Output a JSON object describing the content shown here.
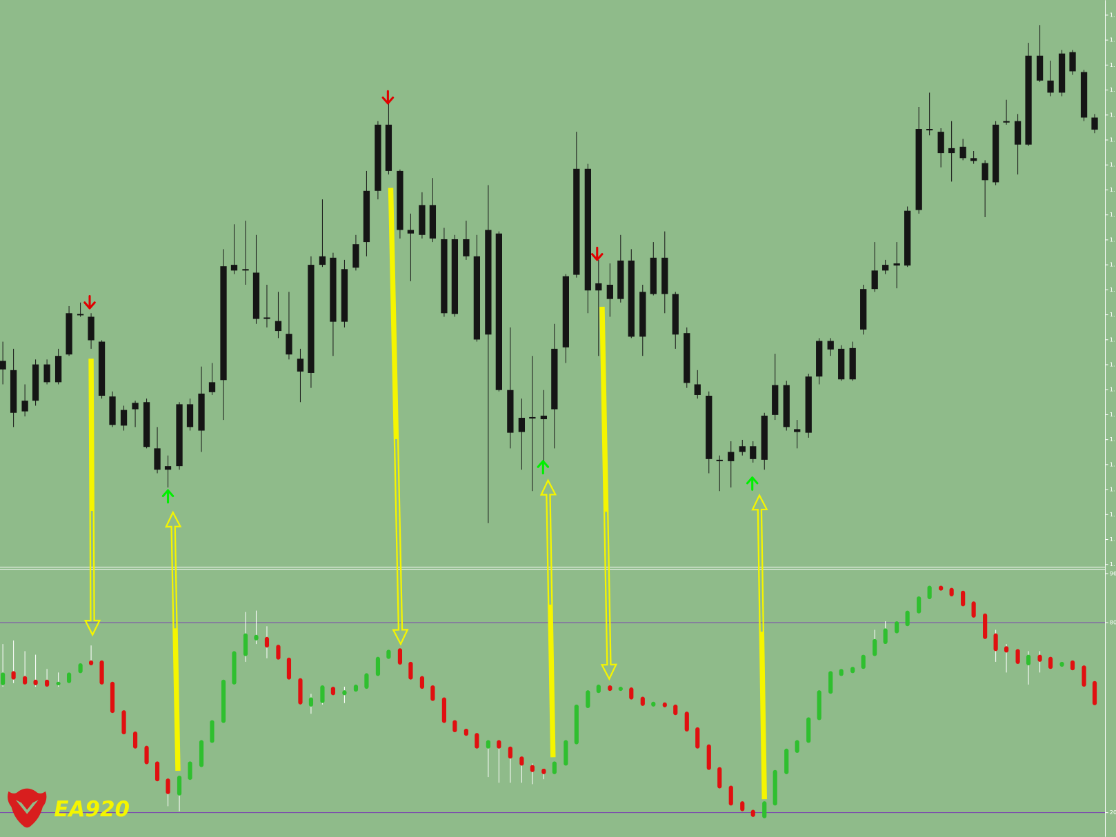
{
  "price_axis": {
    "labels": [
      "1.",
      "1.",
      "1.",
      "1.",
      "1.",
      "1.",
      "1.",
      "1.",
      "1.",
      "1.",
      "1.",
      "1.",
      "1.",
      "1.",
      "1.",
      "1.",
      "1.",
      "1.",
      "1.",
      "1.",
      "1.",
      "1.",
      "1."
    ]
  },
  "indicator_axis": {
    "labels": [
      "96",
      "80",
      "20"
    ]
  },
  "logo": {
    "text": "EA920"
  }
}
